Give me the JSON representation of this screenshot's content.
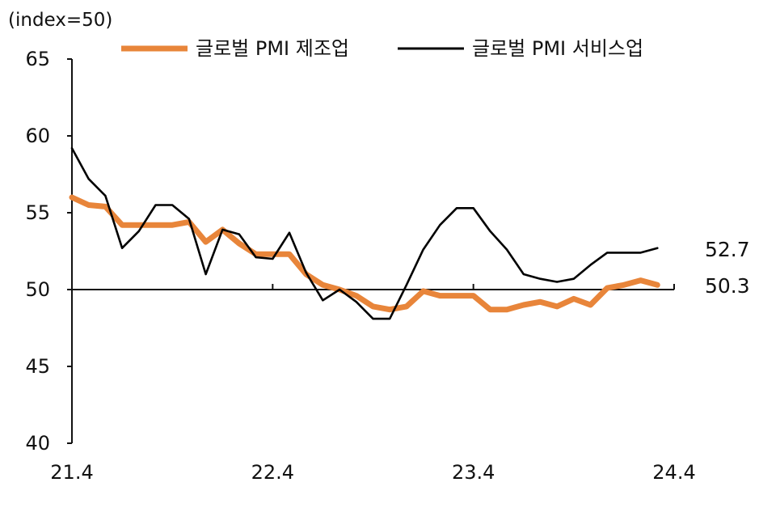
{
  "chart_data": {
    "type": "line",
    "unit_label": "(index=50)",
    "title": "",
    "xlabel": "",
    "ylabel": "",
    "ylim": [
      40,
      65
    ],
    "yticks": [
      40,
      45,
      50,
      55,
      60,
      65
    ],
    "xtick_labels": [
      "21.4",
      "22.4",
      "23.4",
      "24.4"
    ],
    "reference_line": 50,
    "grid": false,
    "legend_position": "top",
    "months": [
      "21.4",
      "21.5",
      "21.6",
      "21.7",
      "21.8",
      "21.9",
      "21.10",
      "21.11",
      "21.12",
      "22.1",
      "22.2",
      "22.3",
      "22.4",
      "22.5",
      "22.6",
      "22.7",
      "22.8",
      "22.9",
      "22.10",
      "22.11",
      "22.12",
      "23.1",
      "23.2",
      "23.3",
      "23.4",
      "23.5",
      "23.6",
      "23.7",
      "23.8",
      "23.9",
      "23.10",
      "23.11",
      "23.12",
      "24.1",
      "24.2",
      "24.3",
      "24.4"
    ],
    "series": [
      {
        "name": "글로벌 PMI 제조업",
        "color": "#E8853A",
        "values": [
          56.0,
          55.5,
          55.4,
          54.2,
          54.2,
          54.2,
          54.2,
          54.4,
          53.1,
          53.9,
          53.0,
          52.3,
          52.3,
          52.3,
          51.0,
          50.3,
          50.0,
          49.6,
          48.9,
          48.7,
          48.9,
          49.9,
          49.6,
          49.6,
          49.6,
          48.7,
          48.7,
          49.0,
          49.2,
          48.9,
          49.4,
          49.0,
          50.1,
          50.3,
          50.6,
          50.3,
          null
        ],
        "end_label": "50.3"
      },
      {
        "name": "글로벌 PMI 서비스업",
        "color": "#000000",
        "values": [
          59.2,
          57.2,
          56.1,
          52.7,
          53.8,
          55.5,
          55.5,
          54.6,
          51.0,
          53.9,
          53.6,
          52.1,
          52.0,
          53.7,
          51.1,
          49.3,
          50.0,
          49.2,
          48.1,
          48.1,
          50.3,
          52.6,
          54.2,
          55.3,
          55.3,
          53.8,
          52.6,
          51.0,
          50.7,
          50.5,
          50.7,
          51.6,
          52.4,
          52.4,
          52.4,
          52.7,
          null
        ],
        "end_label": "52.7"
      }
    ]
  }
}
